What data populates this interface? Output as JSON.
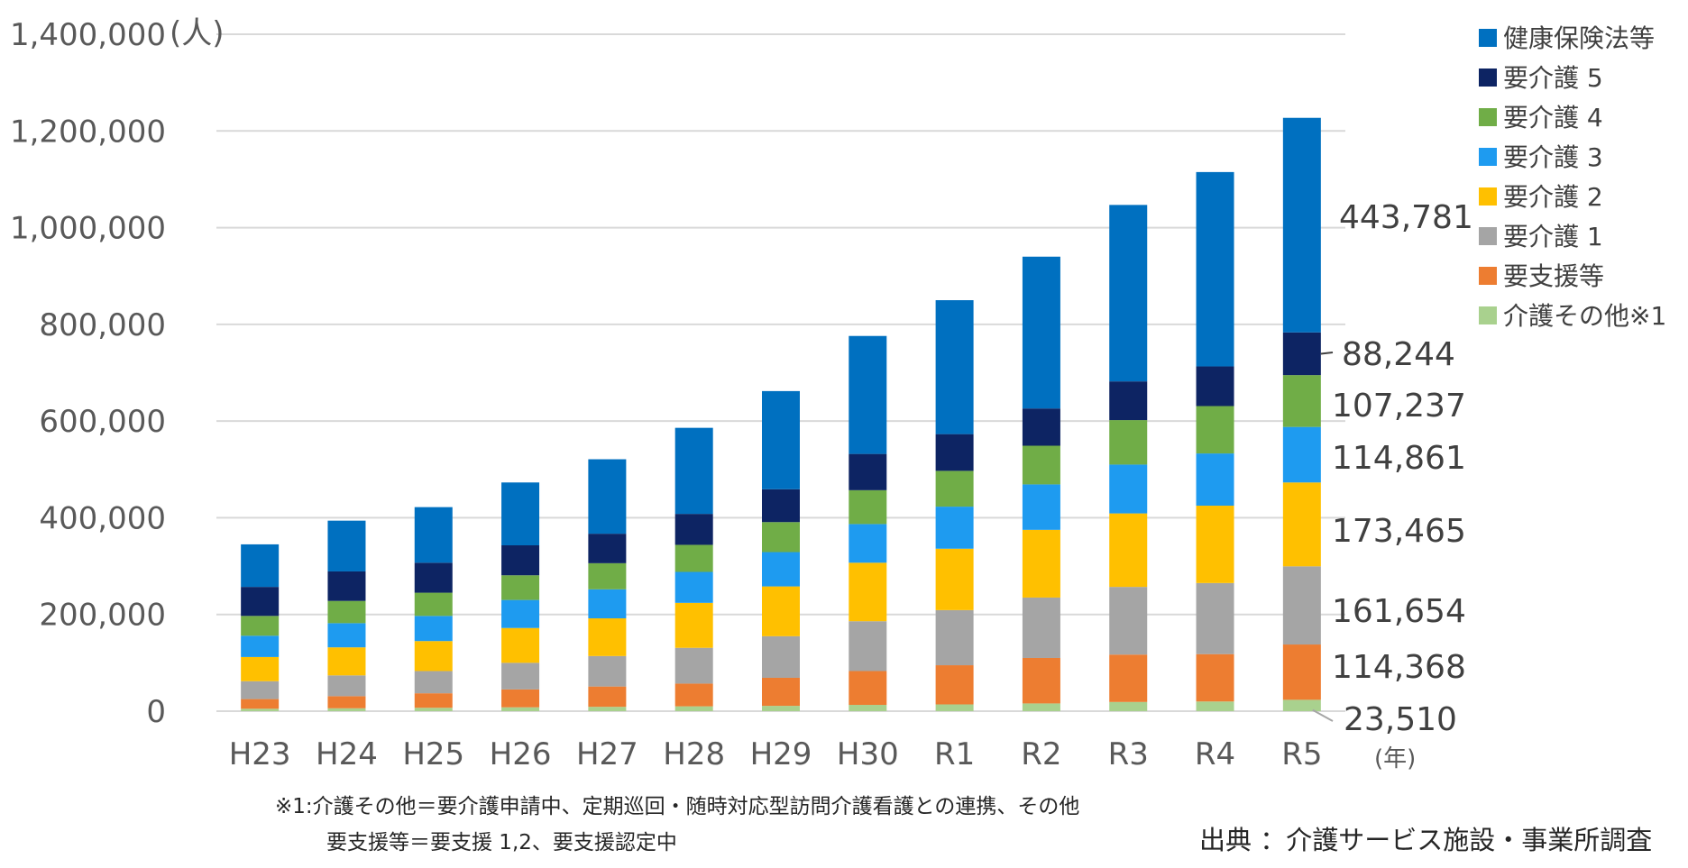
{
  "chart_data": {
    "type": "bar",
    "stacked": true,
    "y_unit": "(人)",
    "x_unit": "(年)",
    "ylim": [
      0,
      1400000
    ],
    "yticks": [
      0,
      200000,
      400000,
      600000,
      800000,
      1000000,
      1200000,
      1400000
    ],
    "ytick_labels": [
      "0",
      "200,000",
      "400,000",
      "600,000",
      "800,000",
      "1,000,000",
      "1,200,000",
      "1,400,000"
    ],
    "grid": true,
    "legend_position": "top-right",
    "categories": [
      "H23",
      "H24",
      "H25",
      "H26",
      "H27",
      "H28",
      "H29",
      "H30",
      "R1",
      "R2",
      "R3",
      "R4",
      "R5"
    ],
    "series": [
      {
        "name": "介護その他※1",
        "color": "#a9d18e",
        "values": [
          5000,
          6000,
          7000,
          8000,
          9000,
          10000,
          11000,
          13000,
          14000,
          16000,
          19000,
          20000,
          23510
        ]
      },
      {
        "name": "要支援等",
        "color": "#ed7d31",
        "values": [
          20000,
          25000,
          30000,
          37000,
          42000,
          47000,
          58000,
          70000,
          81000,
          94000,
          98000,
          98000,
          114368
        ]
      },
      {
        "name": "要介護 1",
        "color": "#a5a5a5",
        "values": [
          37000,
          43000,
          46000,
          55000,
          63000,
          74000,
          86000,
          103000,
          114000,
          125000,
          140000,
          147000,
          161654
        ]
      },
      {
        "name": "要介護 2",
        "color": "#ffc000",
        "values": [
          50000,
          58000,
          62000,
          72000,
          78000,
          93000,
          103000,
          121000,
          127000,
          140000,
          152000,
          160000,
          173465
        ]
      },
      {
        "name": "要介護 3",
        "color": "#1e9bf0",
        "values": [
          44000,
          50000,
          52000,
          58000,
          60000,
          64000,
          71000,
          80000,
          87000,
          94000,
          101000,
          108000,
          114861
        ]
      },
      {
        "name": "要介護 4",
        "color": "#70ad47",
        "values": [
          41000,
          46000,
          48000,
          51000,
          54000,
          56000,
          62000,
          70000,
          74000,
          80000,
          92000,
          98000,
          107237
        ]
      },
      {
        "name": "要介護 5",
        "color": "#0d2463",
        "values": [
          60000,
          61000,
          62000,
          62000,
          61000,
          64000,
          68000,
          75000,
          76000,
          77000,
          80000,
          82000,
          88244
        ]
      },
      {
        "name": "健康保険法等",
        "color": "#0070c0",
        "values": [
          88000,
          105000,
          115000,
          130000,
          154000,
          178000,
          203000,
          244000,
          277000,
          314000,
          365000,
          402000,
          443781
        ]
      }
    ],
    "end_labels": [
      "23,510",
      "114,368",
      "161,654",
      "173,465",
      "114,861",
      "107,237",
      "88,244",
      "443,781"
    ],
    "legend_order": [
      "健康保険法等",
      "要介護 5",
      "要介護 4",
      "要介護 3",
      "要介護 2",
      "要介護 1",
      "要支援等",
      "介護その他※1"
    ]
  },
  "notes": {
    "line1": "※1:介護その他＝要介護申請中、定期巡回・随時対応型訪問介護看護との連携、その他",
    "line2": "要支援等＝要支援 1,2、要支援認定中",
    "source": "出典 ：介護サービス施設・事業所調査"
  },
  "colors": {
    "grid": "#d9d9d9",
    "axis_text": "#595959"
  }
}
